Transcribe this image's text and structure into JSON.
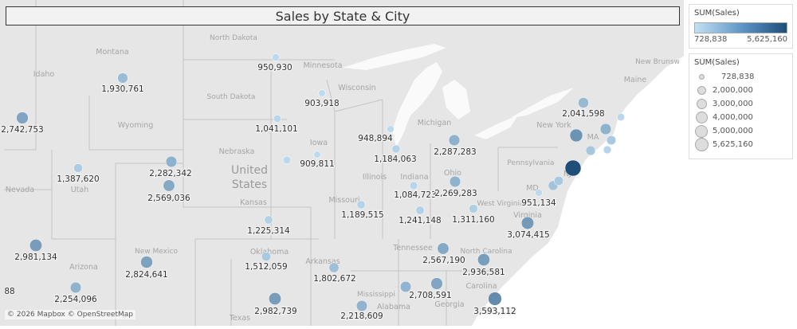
{
  "title": "Sales  by State & City",
  "attribution": "© 2026 Mapbox © OpenStreetMap",
  "country_label": [
    "United",
    "States"
  ],
  "state_labels": [
    "North Dakota",
    "Montana",
    "Minnesota",
    "South Dakota",
    "Wisconsin",
    "Idaho",
    "Wyoming",
    "Michigan",
    "Iowa",
    "Nebraska",
    "New York",
    "Maine",
    "New Brunsw",
    "Pennsylvania",
    "Illinois",
    "Indiana",
    "Ohio",
    "Nevada",
    "Utah",
    "Kansas",
    "Missouri",
    "West Virginia",
    "Virginia",
    "MA",
    "MD",
    "NJ",
    "Tennessee",
    "North Carolina",
    "Oklahoma",
    "Arkansas",
    "Arizona",
    "New Mexico",
    "Mississippi",
    "Alabama",
    "Georgia",
    "Carolina",
    "Texas"
  ],
  "colors": {
    "min": "#c3e0f3",
    "max": "#1f4e79",
    "map_bg": "#e6e6e6",
    "water": "#ffffff"
  },
  "markers": [
    {
      "label": "950,930",
      "value": 950930
    },
    {
      "label": "1,930,761",
      "value": 1930761
    },
    {
      "label": "903,918",
      "value": 903918
    },
    {
      "label": "2,742,753",
      "value": 2742753
    },
    {
      "label": "1,041,101",
      "value": 1041101
    },
    {
      "label": "909,811",
      "value": 909811
    },
    {
      "label": "948,894",
      "value": 948894
    },
    {
      "label": "1,184,063",
      "value": 1184063
    },
    {
      "label": "2,287,283",
      "value": 2287283
    },
    {
      "label": "1,387,620",
      "value": 1387620
    },
    {
      "label": "2,282,342",
      "value": 2282342
    },
    {
      "label": "2,569,036",
      "value": 2569036
    },
    {
      "label": "1,084,723",
      "value": 1084723
    },
    {
      "label": "2,269,283",
      "value": 2269283
    },
    {
      "label": "2,041,598",
      "value": 2041598
    },
    {
      "label": "951,134",
      "value": 951134
    },
    {
      "label": "1,189,515",
      "value": 1189515
    },
    {
      "label": "1,241,148",
      "value": 1241148
    },
    {
      "label": "1,311,160",
      "value": 1311160
    },
    {
      "label": "3,074,415",
      "value": 3074415
    },
    {
      "label": "1,225,314",
      "value": 1225314
    },
    {
      "label": "2,981,134",
      "value": 2981134
    },
    {
      "label": "1,512,059",
      "value": 1512059
    },
    {
      "label": "1,802,672",
      "value": 1802672
    },
    {
      "label": "2,567,190",
      "value": 2567190
    },
    {
      "label": "2,936,581",
      "value": 2936581
    },
    {
      "label": "2,824,641",
      "value": 2824641
    },
    {
      "label": "2,708,591",
      "value": 2708591
    },
    {
      "label": "2,254,096",
      "value": 2254096
    },
    {
      "label": "2,982,739",
      "value": 2982739
    },
    {
      "label": "2,218,609",
      "value": 2218609
    },
    {
      "label": "3,593,112",
      "value": 3593112
    },
    {
      "label": "88",
      "value": null
    }
  ],
  "color_legend": {
    "title": "SUM(Sales)",
    "min": "728,838",
    "max": "5,625,160"
  },
  "size_legend": {
    "title": "SUM(Sales)",
    "items": [
      "728,838",
      "2,000,000",
      "3,000,000",
      "4,000,000",
      "5,000,000",
      "5,625,160"
    ]
  }
}
